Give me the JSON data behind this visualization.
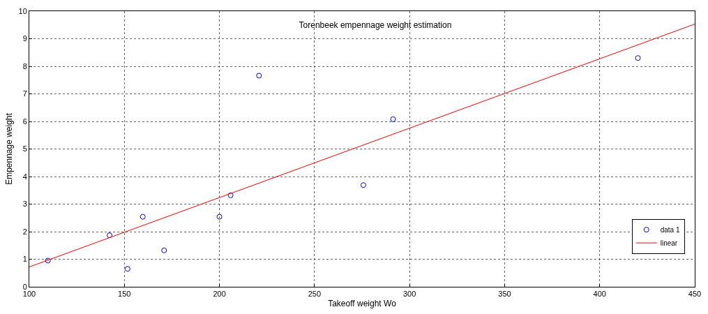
{
  "chart_data": {
    "type": "scatter",
    "title": "Torenbeek empennage weight estimation",
    "xlabel": "Takeoff weight Wo",
    "ylabel": "Empennage weight",
    "series": [
      {
        "name": "data 1",
        "color": "#0000ff",
        "marker": "circle",
        "x": [
          109.8,
          142.2,
          151.7,
          159.7,
          170.9,
          200,
          205.9,
          220.8,
          275.7,
          291.3,
          420.1
        ],
        "values": [
          0.95,
          1.87,
          0.65,
          2.54,
          1.32,
          2.54,
          3.32,
          7.66,
          3.69,
          6.08,
          8.3
        ]
      },
      {
        "name": "linear",
        "type": "line",
        "color": "#ff0000",
        "marker": "none",
        "x": [
          100,
          450
        ],
        "values": [
          0.72,
          9.53
        ]
      }
    ],
    "xlim": [
      100,
      450
    ],
    "xticks": [
      100,
      150,
      200,
      250,
      300,
      350,
      400,
      450
    ],
    "ylim": [
      0,
      10
    ],
    "yticks": [
      0,
      1,
      2,
      3,
      4,
      5,
      6,
      7,
      8,
      9,
      10
    ],
    "grid": true,
    "line_style": "solid",
    "legend": "bottom right"
  }
}
